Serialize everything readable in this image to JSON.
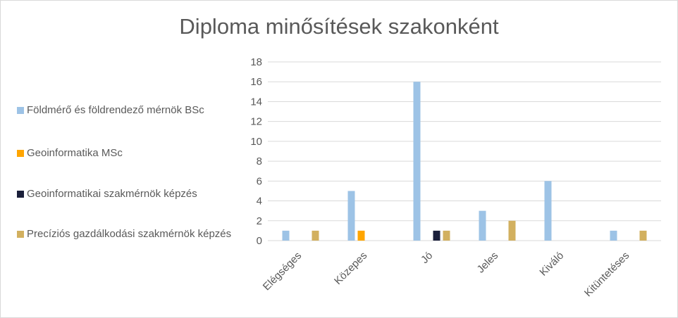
{
  "chart_data": {
    "type": "bar",
    "title": "Diploma minősítések szakonként",
    "categories": [
      "Elégséges",
      "Közepes",
      "Jó",
      "Jeles",
      "Kiváló",
      "Kitüntetéses"
    ],
    "series": [
      {
        "name": "Földmérő és földrendező mérnök BSc",
        "color": "#9dc3e6",
        "values": [
          1,
          5,
          16,
          3,
          6,
          1
        ]
      },
      {
        "name": "Geoinformatika MSc",
        "color": "#ffa500",
        "values": [
          0,
          1,
          0,
          0,
          0,
          0
        ]
      },
      {
        "name": "Geoinformatikai szakmérnök képzés",
        "color": "#1a1f3a",
        "values": [
          0,
          0,
          1,
          0,
          0,
          0
        ]
      },
      {
        "name": "Precíziós gazdálkodási szakmérnök képzés",
        "color": "#d2b05f",
        "values": [
          1,
          0,
          1,
          2,
          0,
          1
        ]
      }
    ],
    "ylim": [
      0,
      18
    ],
    "yticks": [
      0,
      2,
      4,
      6,
      8,
      10,
      12,
      14,
      16,
      18
    ],
    "grid": true,
    "legend_position": "left"
  }
}
